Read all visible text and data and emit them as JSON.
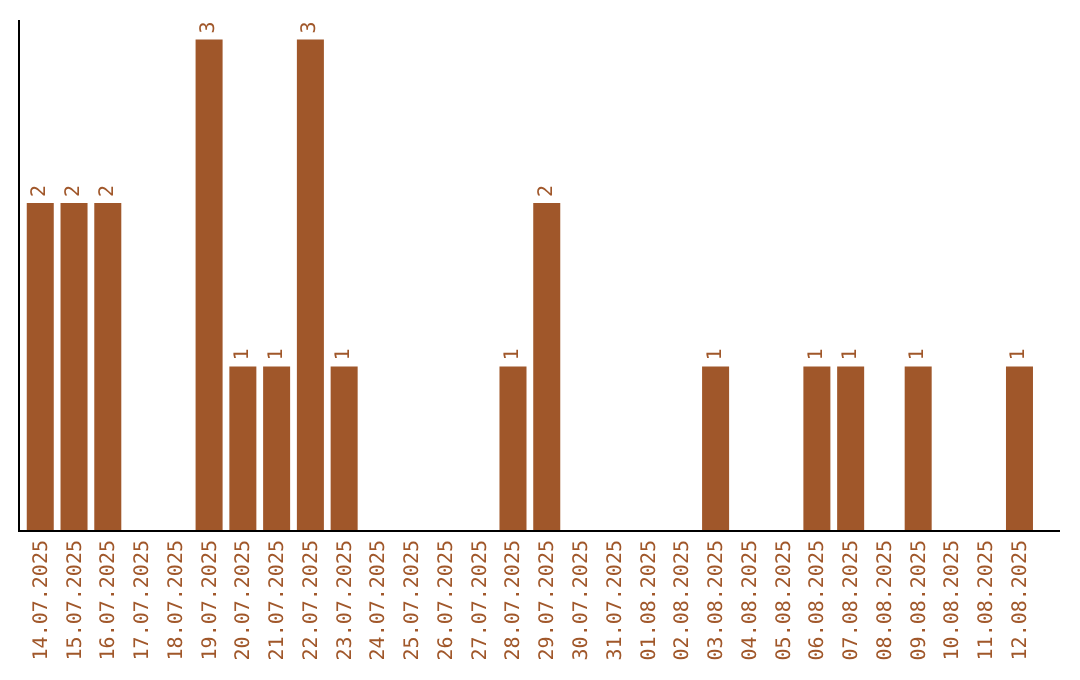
{
  "chart_data": {
    "type": "bar",
    "categories": [
      "14.07.2025",
      "15.07.2025",
      "16.07.2025",
      "17.07.2025",
      "18.07.2025",
      "19.07.2025",
      "20.07.2025",
      "21.07.2025",
      "22.07.2025",
      "23.07.2025",
      "24.07.2025",
      "25.07.2025",
      "26.07.2025",
      "27.07.2025",
      "28.07.2025",
      "29.07.2025",
      "30.07.2025",
      "31.07.2025",
      "01.08.2025",
      "02.08.2025",
      "03.08.2025",
      "04.08.2025",
      "05.08.2025",
      "06.08.2025",
      "07.08.2025",
      "08.08.2025",
      "09.08.2025",
      "10.08.2025",
      "11.08.2025",
      "12.08.2025"
    ],
    "values": [
      2,
      2,
      2,
      0,
      0,
      3,
      1,
      1,
      3,
      1,
      0,
      0,
      0,
      0,
      1,
      2,
      0,
      0,
      0,
      0,
      1,
      0,
      0,
      1,
      1,
      0,
      1,
      0,
      0,
      1
    ],
    "value_labels": [
      "2",
      "2",
      "2",
      null,
      null,
      "3",
      "1",
      "1",
      "3",
      "1",
      null,
      null,
      null,
      null,
      "1",
      "2",
      null,
      null,
      null,
      null,
      "1",
      null,
      null,
      "1",
      "1",
      null,
      "1",
      null,
      null,
      "1"
    ],
    "color": "#a0572a",
    "ylim": [
      0,
      3.12
    ]
  }
}
